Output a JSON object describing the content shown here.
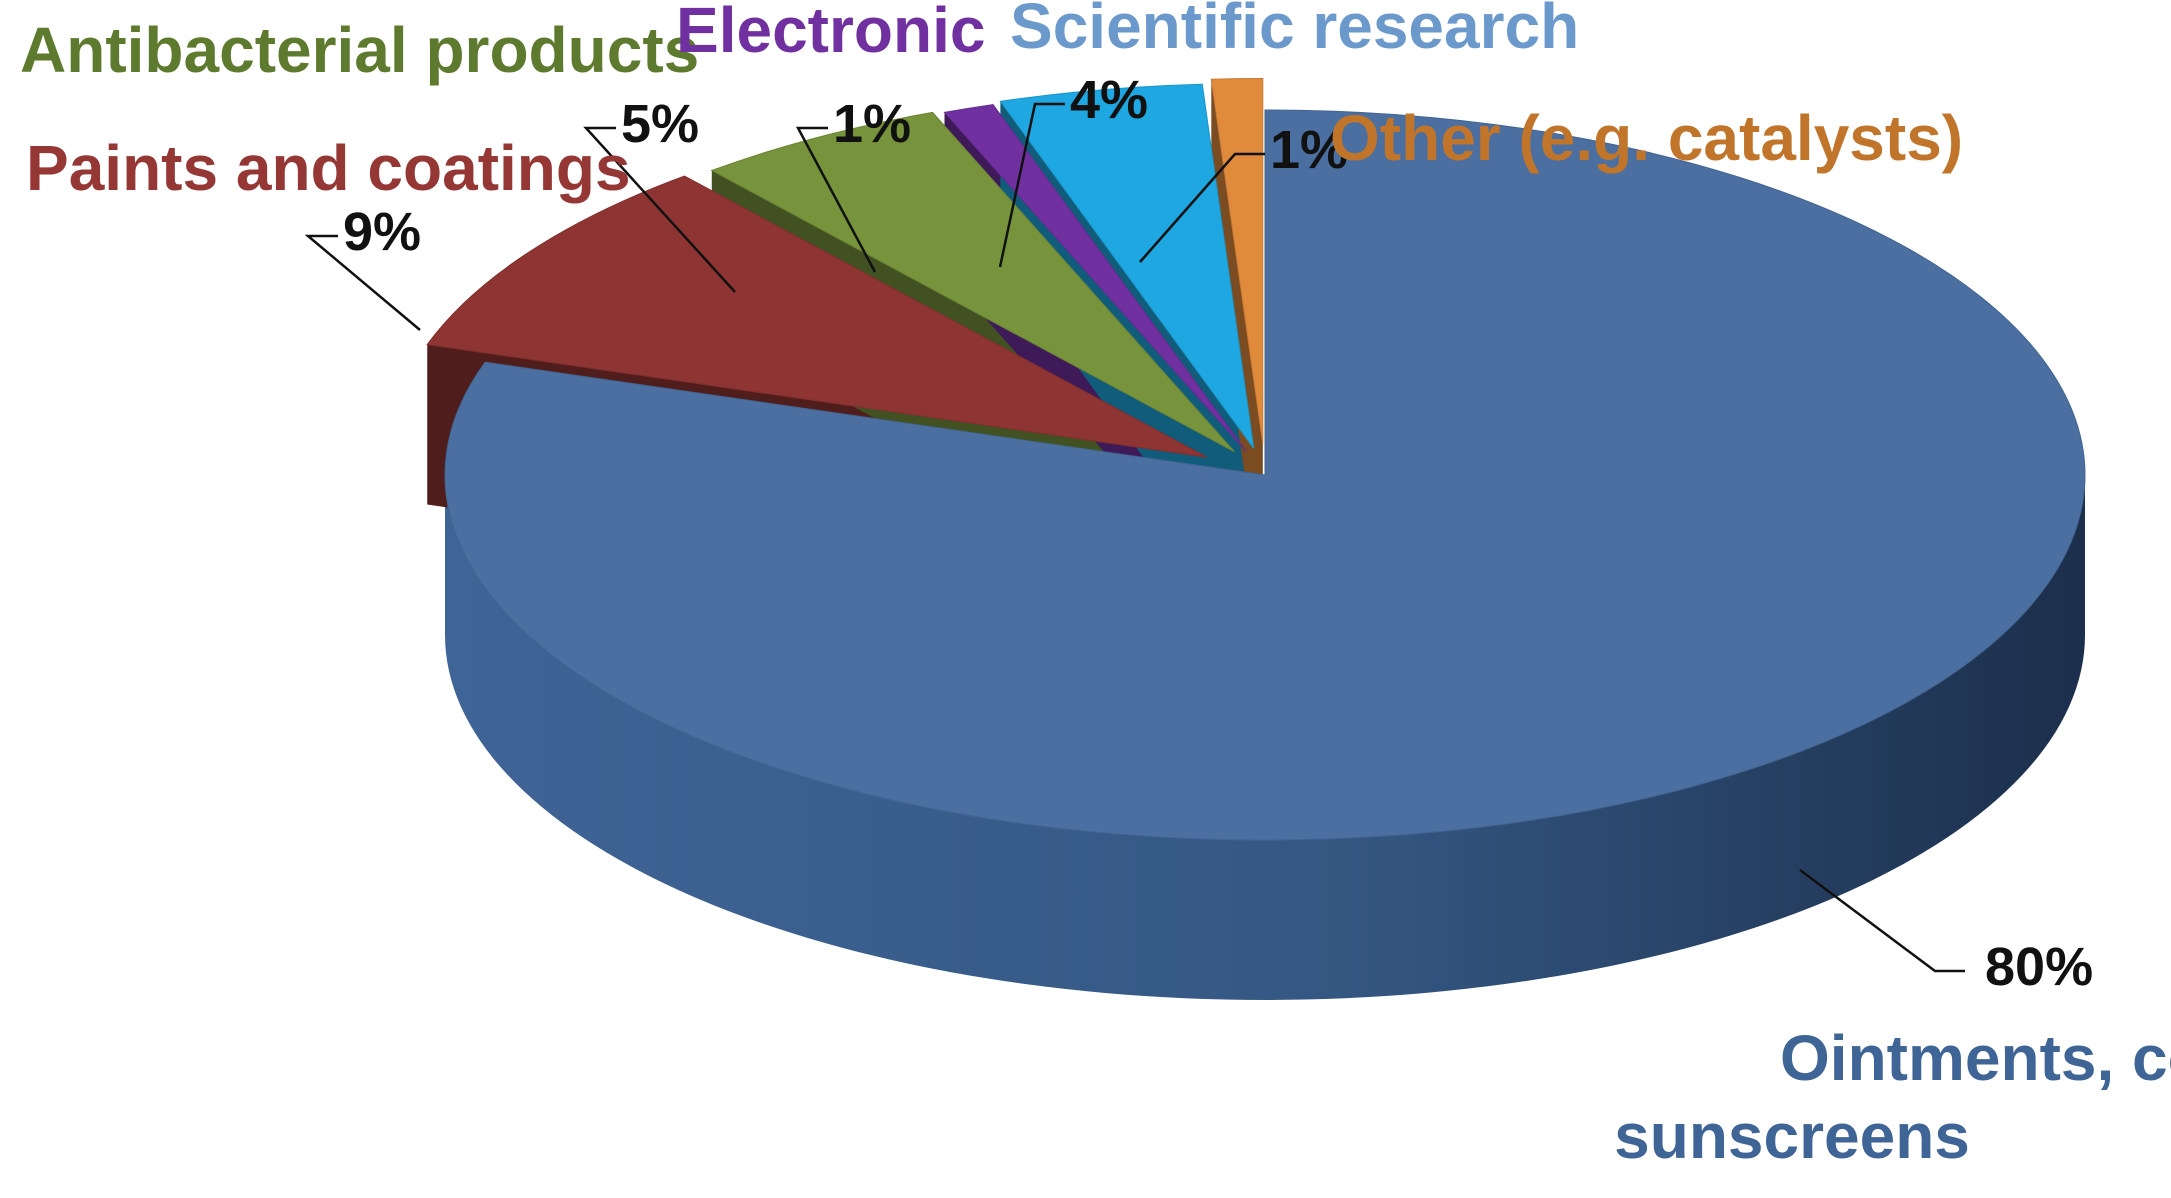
{
  "chart_data": {
    "type": "pie",
    "style": "3d-exploded",
    "slices": [
      {
        "label": "Ointments, cosmetics and sunscreens",
        "label_lines": [
          "Ointments, cosmetics and",
          "sunscreens"
        ],
        "value": 80,
        "value_label": "80%",
        "color": "#4a6fa0",
        "text_color": "#3f6496"
      },
      {
        "label": "Paints and coatings",
        "label_lines": [
          "Paints and coatings"
        ],
        "value": 9,
        "value_label": "9%",
        "color": "#8e3433",
        "text_color": "#953735"
      },
      {
        "label": "Antibacterial products",
        "label_lines": [
          "Antibacterial products"
        ],
        "value": 5,
        "value_label": "5%",
        "color": "#77933c",
        "text_color": "#5d7a2e"
      },
      {
        "label": "Electronic",
        "label_lines": [
          "Electronic"
        ],
        "value": 1,
        "value_label": "1%",
        "color": "#7030a0",
        "text_color": "#7030a0"
      },
      {
        "label": "Scientific research",
        "label_lines": [
          "Scientific research"
        ],
        "value": 4,
        "value_label": "4%",
        "color": "#1ea7e0",
        "text_color": "#6b99cc"
      },
      {
        "label": "Other (e.g. catalysts)",
        "label_lines": [
          "Other (e.g. catalysts)"
        ],
        "value": 1,
        "value_label": "1%",
        "color": "#e08a3c",
        "text_color": "#c0752a"
      }
    ]
  }
}
